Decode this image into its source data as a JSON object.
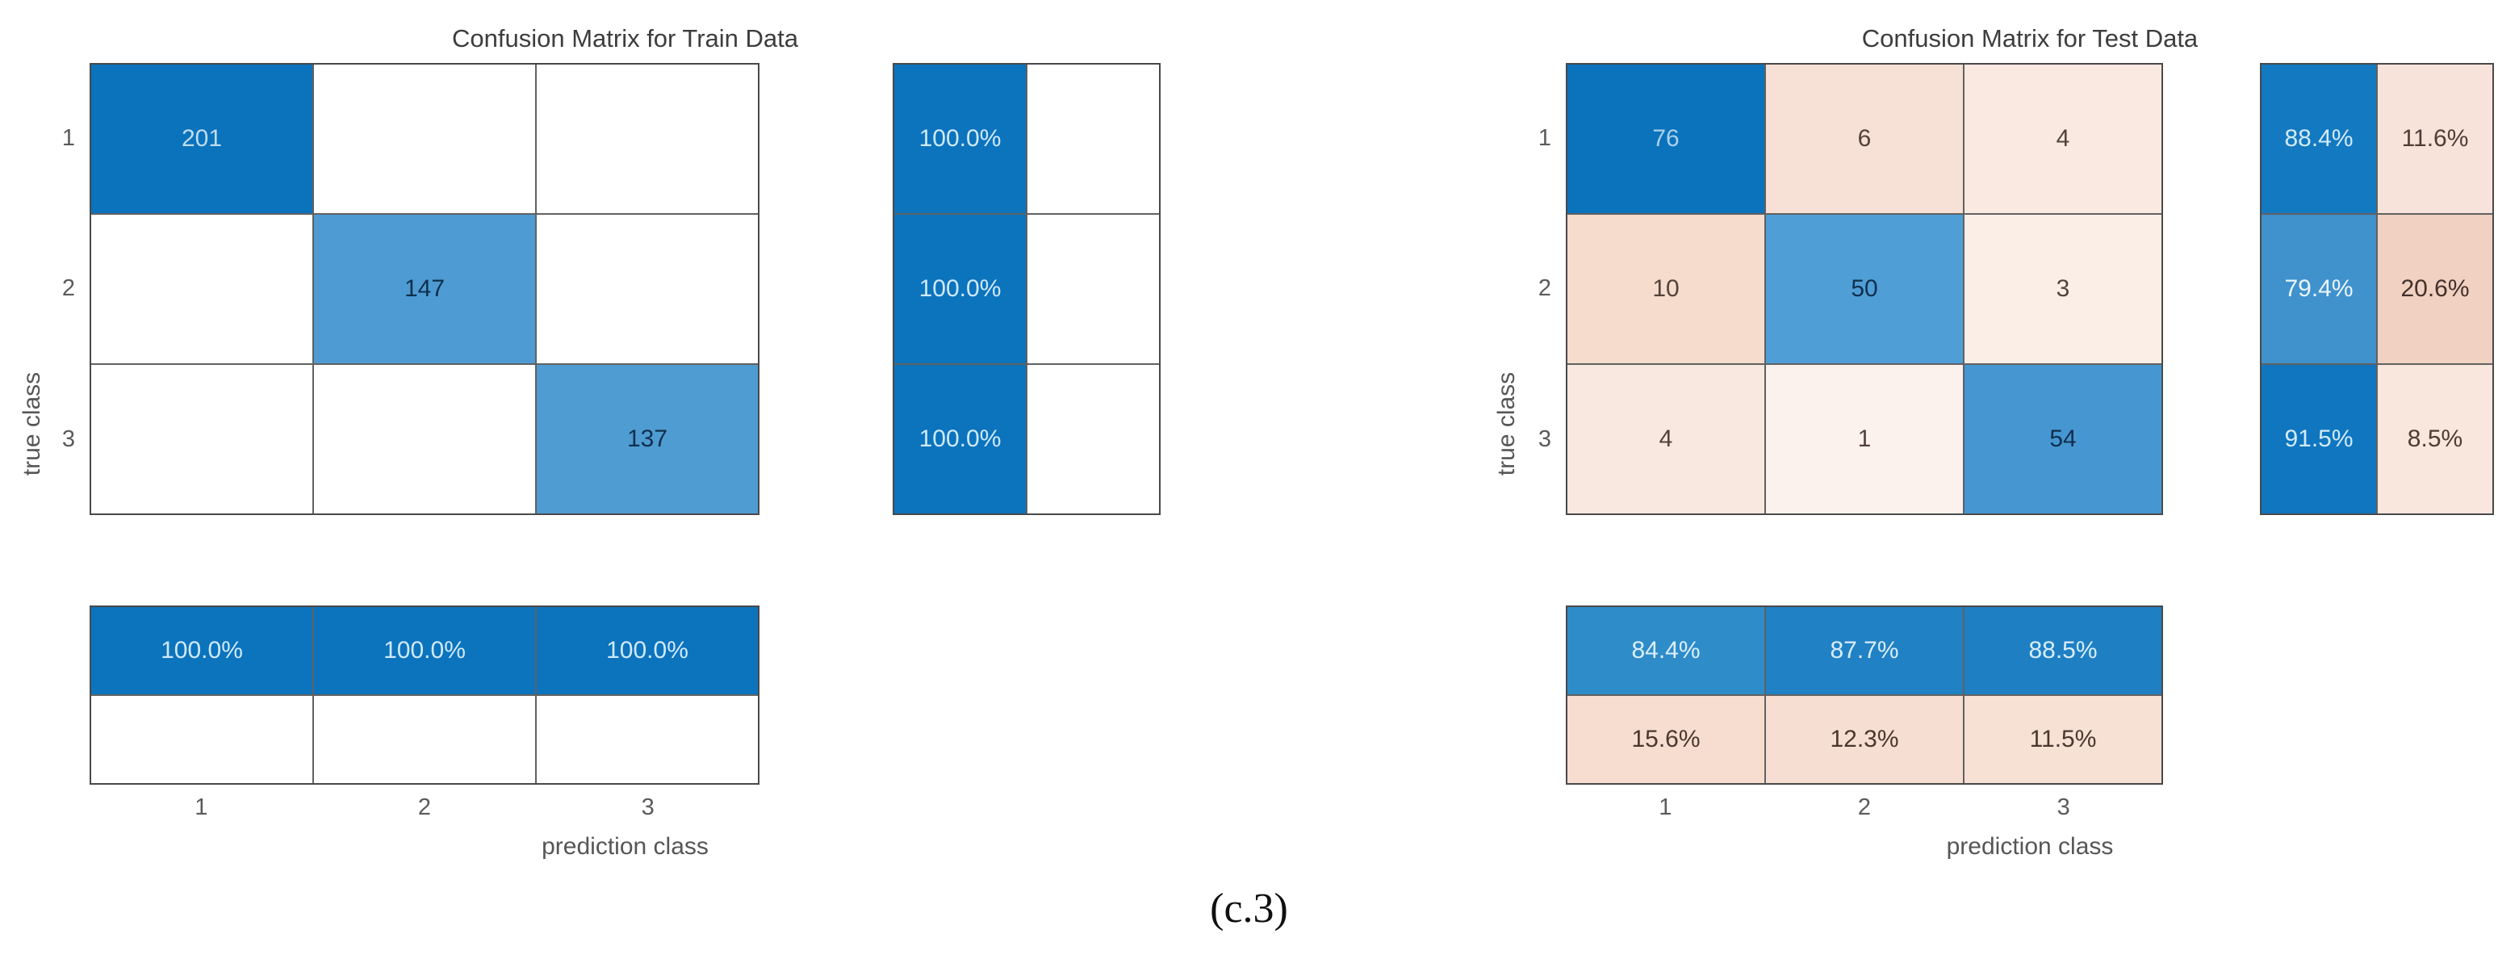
{
  "caption": "(c.3)",
  "train": {
    "title": "Confusion Matrix for Train Data",
    "ylabel": "true class",
    "xlabel": "prediction class",
    "row_ticks": [
      "1",
      "2",
      "3"
    ],
    "col_ticks": [
      "1",
      "2",
      "3"
    ],
    "cells": [
      [
        "201",
        "",
        ""
      ],
      [
        "",
        "147",
        ""
      ],
      [
        "",
        "",
        "137"
      ]
    ],
    "cell_bg": [
      [
        "#0b72bc",
        "#ffffff",
        "#ffffff"
      ],
      [
        "#ffffff",
        "#4e9bd3",
        "#ffffff"
      ],
      [
        "#ffffff",
        "#ffffff",
        "#4f9cd3"
      ]
    ],
    "cell_fg": [
      [
        "#bedcf0",
        "#333333",
        "#333333"
      ],
      [
        "#333333",
        "#0f2f4d",
        "#333333"
      ],
      [
        "#333333",
        "#333333",
        "#0f2f4d"
      ]
    ],
    "row_summary": [
      [
        "100.0%",
        ""
      ],
      [
        "100.0%",
        ""
      ],
      [
        "100.0%",
        ""
      ]
    ],
    "row_summary_bg": [
      [
        "#0c73bd",
        "#ffffff"
      ],
      [
        "#0c73bd",
        "#ffffff"
      ],
      [
        "#0c73bd",
        "#ffffff"
      ]
    ],
    "row_summary_fg": [
      [
        "#cfe9fa",
        "#333333"
      ],
      [
        "#cfe9fa",
        "#333333"
      ],
      [
        "#cfe9fa",
        "#333333"
      ]
    ],
    "col_summary": [
      [
        "100.0%",
        "100.0%",
        "100.0%"
      ],
      [
        "",
        "",
        ""
      ]
    ],
    "col_summary_bg": [
      [
        "#0c73bd",
        "#0c73bd",
        "#0c73bd"
      ],
      [
        "#ffffff",
        "#ffffff",
        "#ffffff"
      ]
    ],
    "col_summary_fg": [
      [
        "#cfe9fa",
        "#cfe9fa",
        "#cfe9fa"
      ],
      [
        "#333333",
        "#333333",
        "#333333"
      ]
    ]
  },
  "test": {
    "title": "Confusion Matrix for Test Data",
    "ylabel": "true class",
    "xlabel": "prediction class",
    "row_ticks": [
      "1",
      "2",
      "3"
    ],
    "col_ticks": [
      "1",
      "2",
      "3"
    ],
    "cells": [
      [
        "76",
        "6",
        "4"
      ],
      [
        "10",
        "50",
        "3"
      ],
      [
        "4",
        "1",
        "54"
      ]
    ],
    "cell_bg": [
      [
        "#0b72bc",
        "#f7e1d6",
        "#f9e9e0"
      ],
      [
        "#f5dccd",
        "#4f9ed6",
        "#fbeee7"
      ],
      [
        "#f9e8df",
        "#fcf2ed",
        "#4697d1"
      ]
    ],
    "cell_fg": [
      [
        "#a8d1ec",
        "#53423a",
        "#53423a"
      ],
      [
        "#53423a",
        "#0f2f4d",
        "#53423a"
      ],
      [
        "#53423a",
        "#53423a",
        "#0f2f4d"
      ]
    ],
    "row_summary": [
      [
        "88.4%",
        "11.6%"
      ],
      [
        "79.4%",
        "20.6%"
      ],
      [
        "91.5%",
        "8.5%"
      ]
    ],
    "row_summary_bg": [
      [
        "#1379c0",
        "#f8e3da"
      ],
      [
        "#4092cd",
        "#f1d1c1"
      ],
      [
        "#0f76bf",
        "#f9e6dd"
      ]
    ],
    "row_summary_fg": [
      [
        "#d3eafb",
        "#4e3d35"
      ],
      [
        "#eaf5fc",
        "#43312b"
      ],
      [
        "#d3eafb",
        "#4e3d35"
      ]
    ],
    "col_summary": [
      [
        "84.4%",
        "87.7%",
        "88.5%"
      ],
      [
        "15.6%",
        "12.3%",
        "11.5%"
      ]
    ],
    "col_summary_bg": [
      [
        "#2e8cc9",
        "#2081c4",
        "#1e80c3"
      ],
      [
        "#f6ddd0",
        "#f6ded2",
        "#f7e0d4"
      ]
    ],
    "col_summary_fg": [
      [
        "#dcEEfb",
        "#d9edfb",
        "#d9edfb"
      ],
      [
        "#4a372f",
        "#4a372f",
        "#4a372f"
      ]
    ]
  },
  "chart_data": [
    {
      "type": "heatmap",
      "title": "Confusion Matrix for Train Data",
      "xlabel": "prediction class",
      "ylabel": "true class",
      "classes": [
        "1",
        "2",
        "3"
      ],
      "matrix": [
        [
          201,
          0,
          0
        ],
        [
          0,
          147,
          0
        ],
        [
          0,
          0,
          137
        ]
      ],
      "row_summary_pct": [
        [
          100.0,
          null
        ],
        [
          100.0,
          null
        ],
        [
          100.0,
          null
        ]
      ],
      "col_summary_pct": [
        [
          100.0,
          100.0,
          100.0
        ],
        [
          null,
          null,
          null
        ]
      ],
      "legend_position": "none",
      "grid": true
    },
    {
      "type": "heatmap",
      "title": "Confusion Matrix for Test Data",
      "xlabel": "prediction class",
      "ylabel": "true class",
      "classes": [
        "1",
        "2",
        "3"
      ],
      "matrix": [
        [
          76,
          6,
          4
        ],
        [
          10,
          50,
          3
        ],
        [
          4,
          1,
          54
        ]
      ],
      "row_summary_pct": [
        [
          88.4,
          11.6
        ],
        [
          79.4,
          20.6
        ],
        [
          91.5,
          8.5
        ]
      ],
      "col_summary_pct": [
        [
          84.4,
          87.7,
          88.5
        ],
        [
          15.6,
          12.3,
          11.5
        ]
      ],
      "legend_position": "none",
      "grid": true
    }
  ],
  "colors": {
    "diagonal_blue": "#0b72bc",
    "mid_blue": "#4e9bd3",
    "offdiag_peach": "#f5dccd",
    "gridline_gray": "#5a5a5a",
    "text_gray": "#565656"
  }
}
